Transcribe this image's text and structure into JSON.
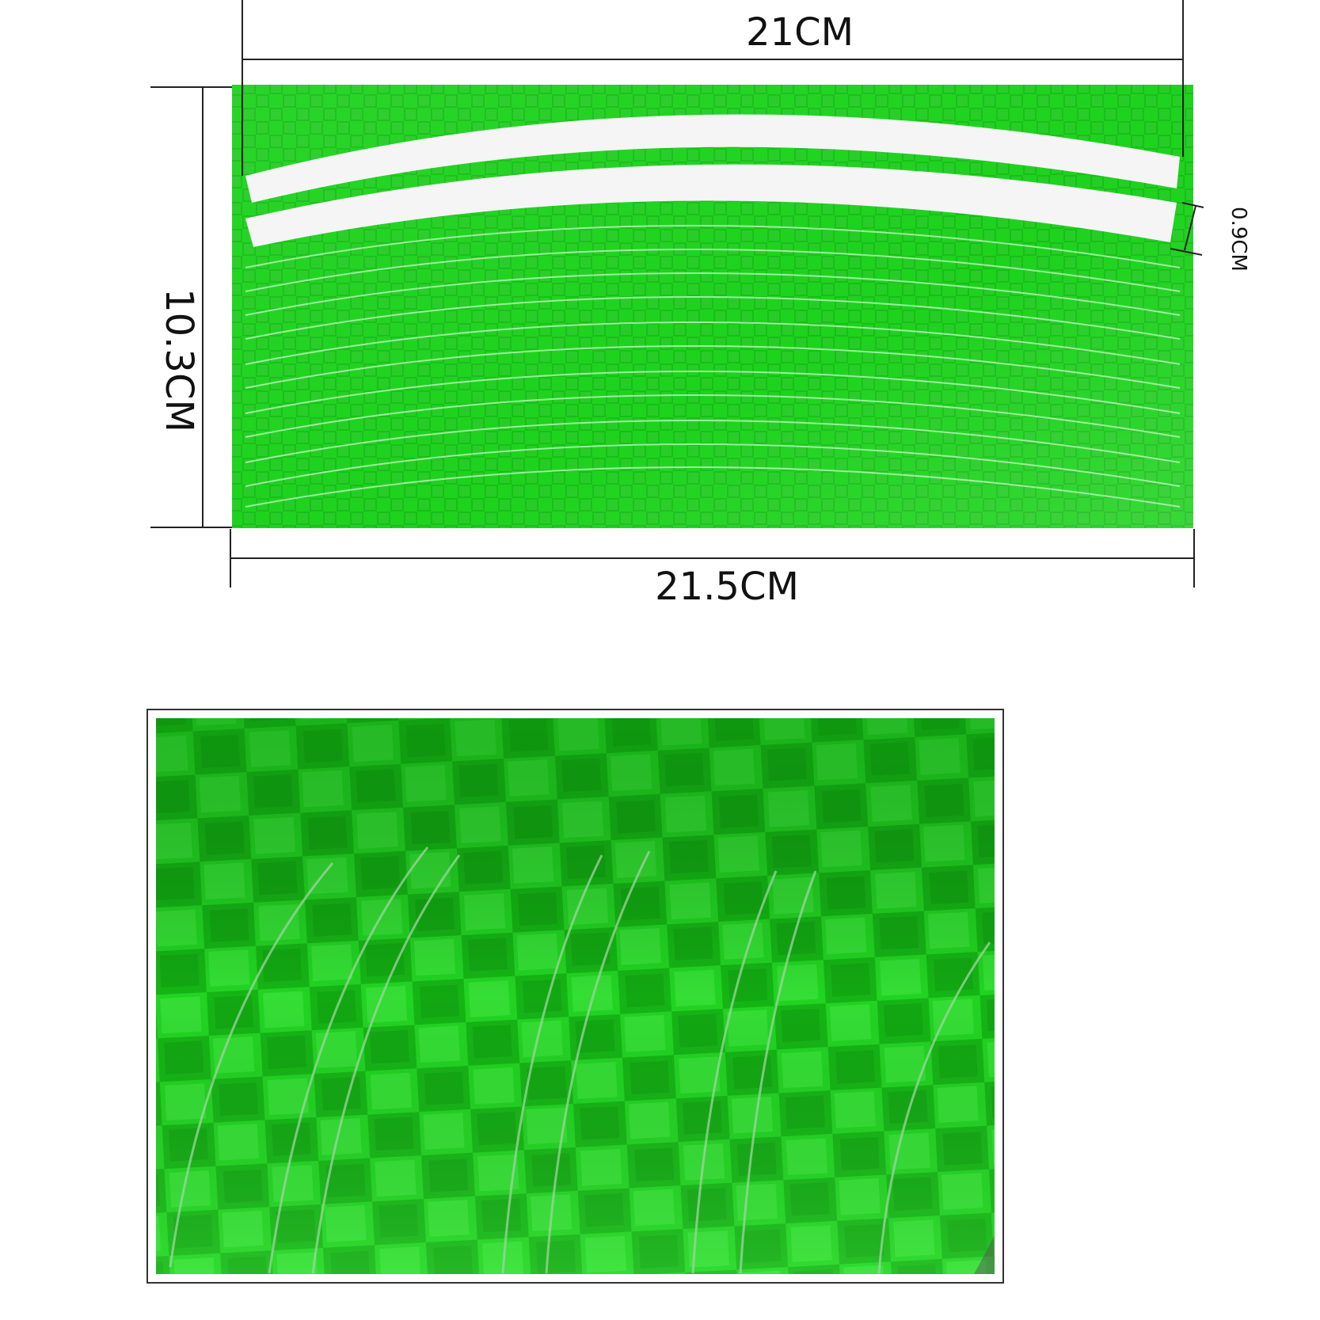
{
  "measurements": {
    "top_width": "21CM",
    "bottom_width": "21.5CM",
    "height": "10.3CM",
    "strip_width": "0.9CM"
  },
  "colors": {
    "sheet_green": "#1ED21E",
    "sheet_dark": "#0FA50F",
    "sheet_light": "#5CF55C",
    "strip_white": "#F4F5F4",
    "dimension_line": "#222222",
    "detail_border": "#333333"
  },
  "panels": {
    "sheet": "reflective-sticker-sheet",
    "detail": "close-up-texture"
  }
}
